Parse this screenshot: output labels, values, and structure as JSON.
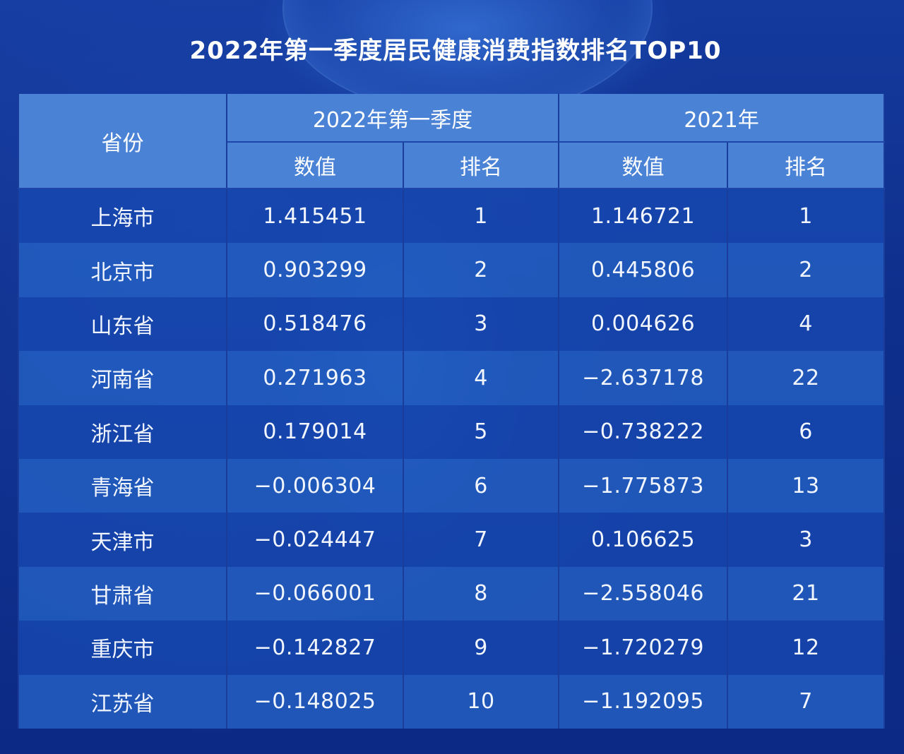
{
  "title": "2022年第一季度居民健康消费指数排名TOP10",
  "header": {
    "province": "省份",
    "group1": "2022年第一季度",
    "group2": "2021年",
    "value": "数值",
    "rank": "排名"
  },
  "rows": [
    {
      "province": "上海市",
      "q1_value": "1.415451",
      "q1_rank": "1",
      "y2021_value": "1.146721",
      "y2021_rank": "1"
    },
    {
      "province": "北京市",
      "q1_value": "0.903299",
      "q1_rank": "2",
      "y2021_value": "0.445806",
      "y2021_rank": "2"
    },
    {
      "province": "山东省",
      "q1_value": "0.518476",
      "q1_rank": "3",
      "y2021_value": "0.004626",
      "y2021_rank": "4"
    },
    {
      "province": "河南省",
      "q1_value": "0.271963",
      "q1_rank": "4",
      "y2021_value": "−2.637178",
      "y2021_rank": "22"
    },
    {
      "province": "浙江省",
      "q1_value": "0.179014",
      "q1_rank": "5",
      "y2021_value": "−0.738222",
      "y2021_rank": "6"
    },
    {
      "province": "青海省",
      "q1_value": "−0.006304",
      "q1_rank": "6",
      "y2021_value": "−1.775873",
      "y2021_rank": "13"
    },
    {
      "province": "天津市",
      "q1_value": "−0.024447",
      "q1_rank": "7",
      "y2021_value": "0.106625",
      "y2021_rank": "3"
    },
    {
      "province": "甘肃省",
      "q1_value": "−0.066001",
      "q1_rank": "8",
      "y2021_value": "−2.558046",
      "y2021_rank": "21"
    },
    {
      "province": "重庆市",
      "q1_value": "−0.142827",
      "q1_rank": "9",
      "y2021_value": "−1.720279",
      "y2021_rank": "12"
    },
    {
      "province": "江苏省",
      "q1_value": "−0.148025",
      "q1_rank": "10",
      "y2021_value": "−1.192095",
      "y2021_rank": "7"
    }
  ]
}
